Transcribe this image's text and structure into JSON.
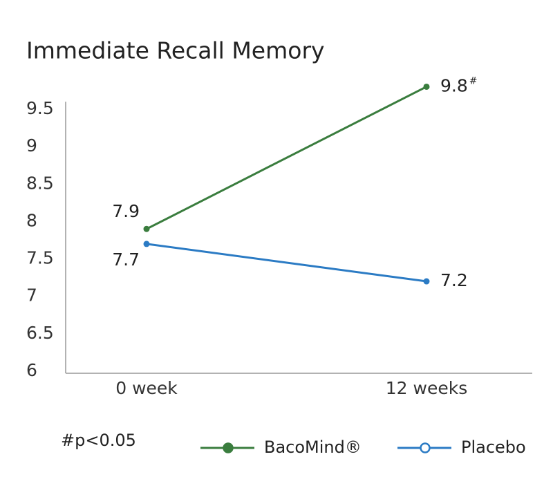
{
  "chart_data": {
    "type": "line",
    "title": "Immediate Recall Memory",
    "categories": [
      "0 week",
      "12 weeks"
    ],
    "series": [
      {
        "name": "BacoMind®",
        "color": "#3a7d3e",
        "values": [
          7.9,
          9.8
        ],
        "legend_marker": "filled"
      },
      {
        "name": "Placebo",
        "color": "#2b7bc4",
        "values": [
          7.7,
          7.2
        ],
        "legend_marker": "open"
      }
    ],
    "ylim": [
      6,
      9.6
    ],
    "yticks": [
      6,
      6.5,
      7,
      7.5,
      8,
      8.5,
      9,
      9.5
    ],
    "grid": false,
    "significance_marker": "#",
    "footnote": "#p<0.05",
    "legend_position": "bottom-right"
  }
}
